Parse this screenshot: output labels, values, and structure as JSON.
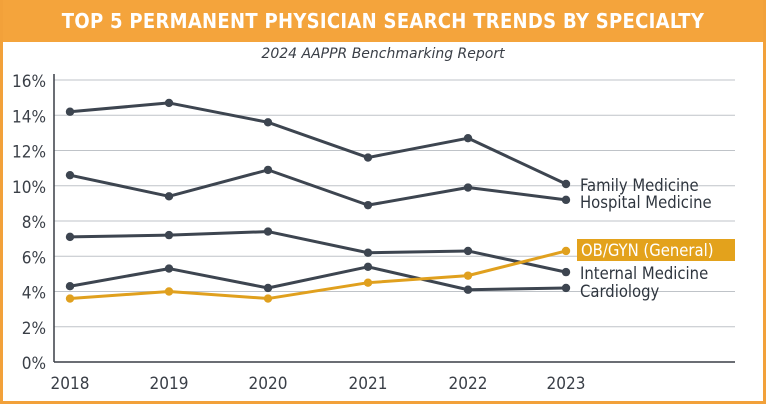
{
  "header": {
    "title": "Top 5 Permanent Physician Search Trends by Specialty",
    "subtitle": "2024 AAPPR Benchmarking Report"
  },
  "colors": {
    "banner": "#f4a43c",
    "dark_series": "#3d4550",
    "highlight_series": "#e0a01e",
    "highlight_label_bg": "#e3a21c",
    "grid": "#bfc3c8"
  },
  "chart_data": {
    "type": "line",
    "x": [
      "2018",
      "2019",
      "2020",
      "2021",
      "2022",
      "2023"
    ],
    "ylim": [
      0,
      16
    ],
    "yticks": [
      "0%",
      "2%",
      "4%",
      "6%",
      "8%",
      "10%",
      "12%",
      "14%",
      "16%"
    ],
    "grid": true,
    "legend": "end-of-line labels at right",
    "series": [
      {
        "name": "Family Medicine",
        "values": [
          14.2,
          14.7,
          13.6,
          11.6,
          12.7,
          10.1
        ],
        "color": "#3d4550",
        "highlight": false
      },
      {
        "name": "Hospital Medicine",
        "values": [
          10.6,
          9.4,
          10.9,
          8.9,
          9.9,
          9.2
        ],
        "color": "#3d4550",
        "highlight": false
      },
      {
        "name": "OB/GYN (General)",
        "values": [
          3.6,
          4.0,
          3.6,
          4.5,
          4.9,
          6.3
        ],
        "color": "#e0a01e",
        "highlight": true
      },
      {
        "name": "Internal Medicine",
        "values": [
          7.1,
          7.2,
          7.4,
          6.2,
          6.3,
          5.1
        ],
        "color": "#3d4550",
        "highlight": false
      },
      {
        "name": "Cardiology",
        "values": [
          4.3,
          5.3,
          4.2,
          5.4,
          4.1,
          4.2
        ],
        "color": "#3d4550",
        "highlight": false
      }
    ]
  }
}
